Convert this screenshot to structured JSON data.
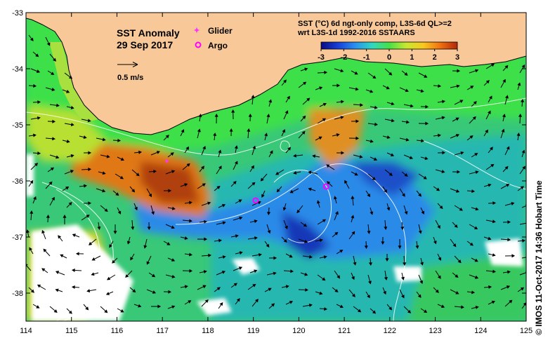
{
  "map": {
    "title": "SST Anomaly",
    "date": "29 Sep 2017",
    "scale_arrow_label": "0.5 m/s",
    "lon_ticks": [
      "114",
      "115",
      "116",
      "117",
      "118",
      "119",
      "120",
      "121",
      "122",
      "123",
      "124",
      "125"
    ],
    "lat_ticks": [
      "-33",
      "-34",
      "-35",
      "-36",
      "-37",
      "-38"
    ],
    "lon_range": [
      114,
      125
    ],
    "lat_range": [
      -38.5,
      -33
    ],
    "legend": {
      "glider_label": "Glider",
      "argo_label": "Argo",
      "glider_color": "#ff33ff",
      "argo_color": "#ff00ff"
    },
    "colorbar": {
      "line1": "SST (°C) 6d ngt-only comp, L3S-6d QL>=2",
      "line2": "wrt L3S-1d 1992-2016 SSTAARS",
      "ticks": [
        "-3",
        "-2",
        "-1",
        "0",
        "1",
        "2",
        "3"
      ],
      "range": [
        -3,
        3
      ],
      "colors": [
        "#0a0a80",
        "#1840d8",
        "#2a90f0",
        "#30d8c0",
        "#48e048",
        "#c8e830",
        "#f8c820",
        "#f07010",
        "#b02808"
      ]
    },
    "glider_position": {
      "lon": 117.1,
      "lat": -35.65
    },
    "argo_positions": [
      {
        "lon": 119.05,
        "lat": -36.35
      },
      {
        "lon": 120.6,
        "lat": -36.1
      }
    ],
    "land_color": "#f8c898",
    "credit": "© IMOS 11-Oct-2017 14:36 Hobart Time"
  }
}
